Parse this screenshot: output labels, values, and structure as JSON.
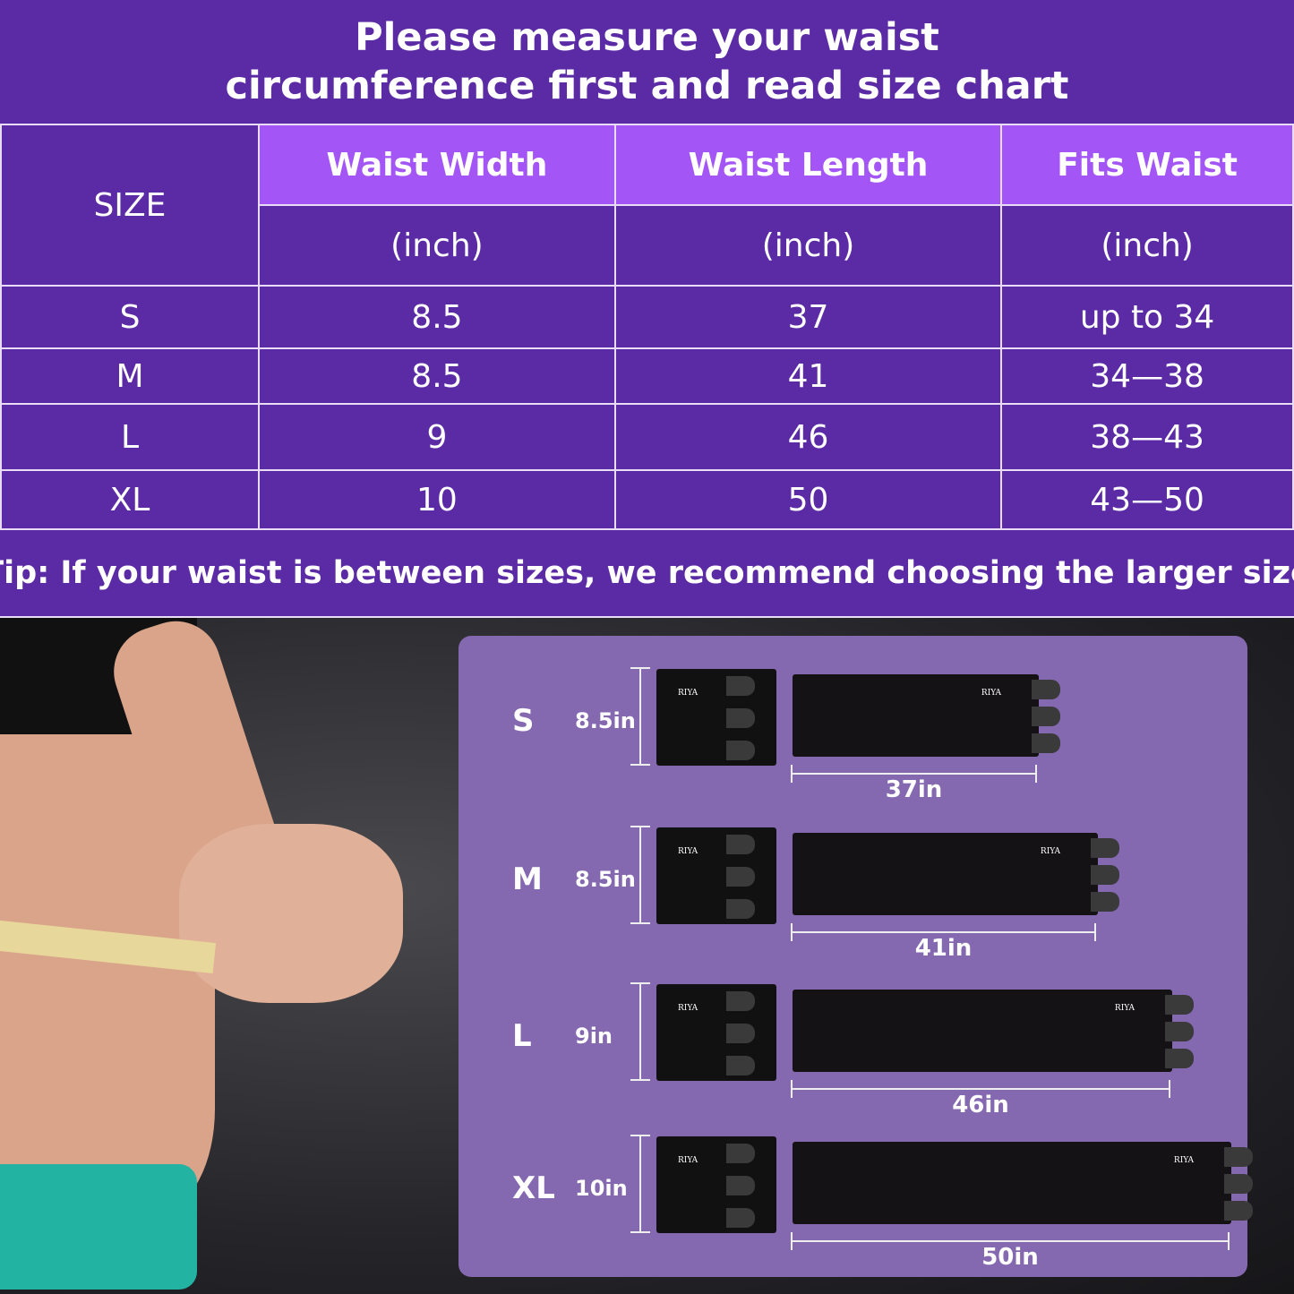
{
  "title": {
    "line1": "Please measure your waist",
    "line2": "circumference first and read size chart"
  },
  "table": {
    "headers": [
      "SIZE",
      "Waist Width",
      "Waist Length",
      "Fits Waist"
    ],
    "units": [
      "(inch)",
      "(inch)",
      "(inch)"
    ],
    "rows": [
      [
        "S",
        "8.5",
        "37",
        "up to 34"
      ],
      [
        "M",
        "8.5",
        "41",
        "34—38"
      ],
      [
        "L",
        "9",
        "46",
        "38—43"
      ],
      [
        "XL",
        "10",
        "50",
        "43—50"
      ]
    ]
  },
  "tip": "Tip: If your waist is between sizes, we recommend choosing the larger size",
  "panel": {
    "brand": "RIYA",
    "items": [
      {
        "size": "S",
        "width": "8.5in",
        "length": "37in",
        "length_value": 37
      },
      {
        "size": "M",
        "width": "8.5in",
        "length": "41in",
        "length_value": 41
      },
      {
        "size": "L",
        "width": "9in",
        "length": "46in",
        "length_value": 46
      },
      {
        "size": "XL",
        "width": "10in",
        "length": "50in",
        "length_value": 50
      }
    ]
  },
  "colors": {
    "header_bg": "#5b2ba6",
    "column_header_bg": "#a356f5",
    "panel_bg": "#8468b0"
  }
}
